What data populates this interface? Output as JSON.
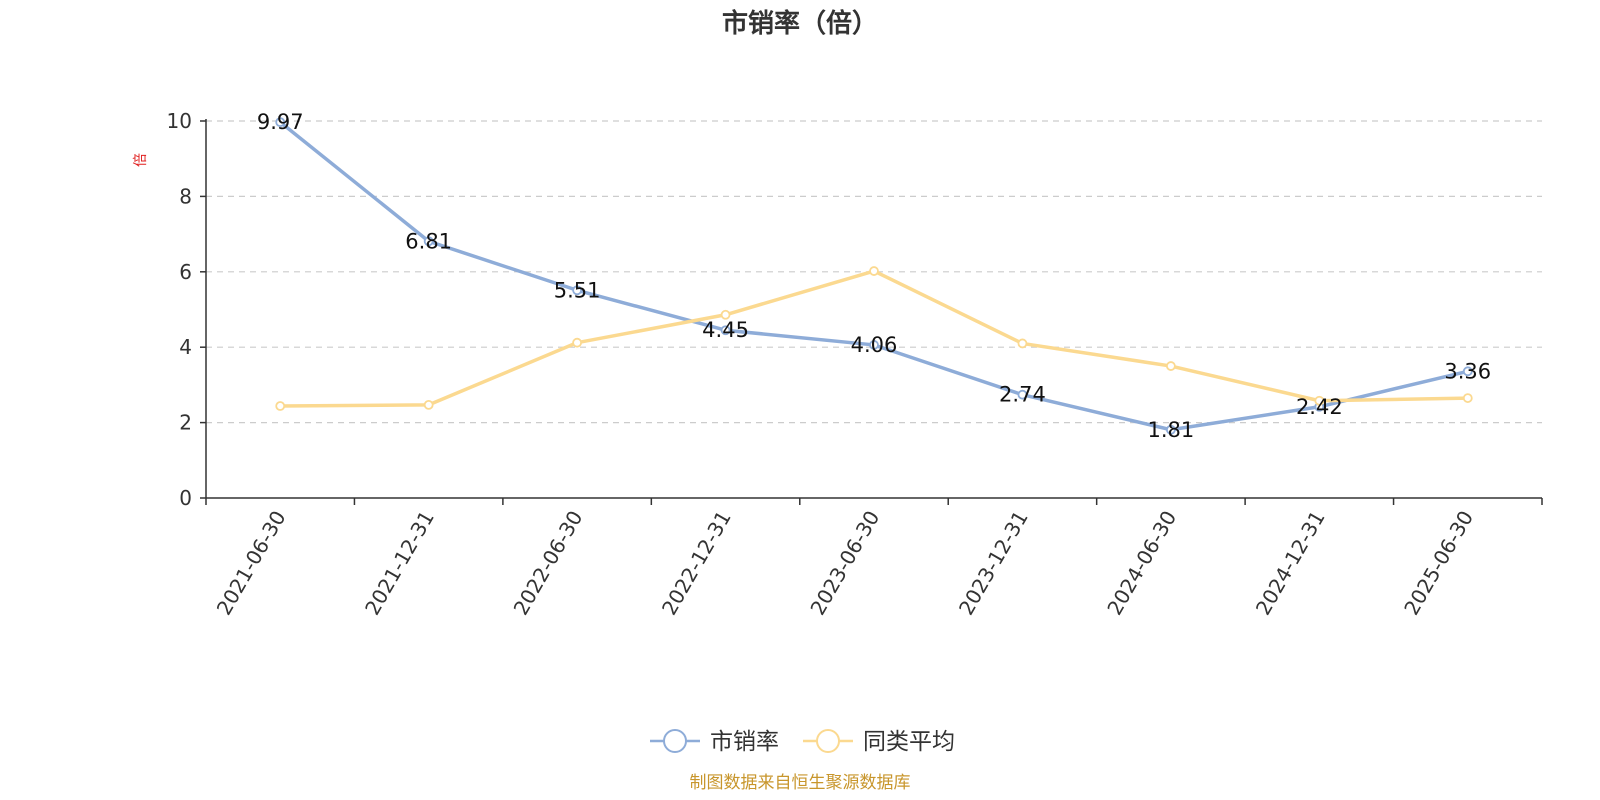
{
  "chart_data": {
    "type": "line",
    "title": "市销率（倍）",
    "ylabel": "倍",
    "categories": [
      "2021-06-30",
      "2021-12-31",
      "2022-06-30",
      "2022-12-31",
      "2023-06-30",
      "2023-12-31",
      "2024-06-30",
      "2024-12-31",
      "2025-06-30"
    ],
    "ylim": [
      0,
      10
    ],
    "yticks": [
      0,
      2,
      4,
      6,
      8,
      10
    ],
    "grid": true,
    "legend_position": "bottom-center",
    "series": [
      {
        "name": "市销率",
        "color": "#8eacd8",
        "values": [
          9.97,
          6.81,
          5.51,
          4.45,
          4.06,
          2.74,
          1.81,
          2.42,
          3.36
        ],
        "labels": [
          "9.97",
          "6.81",
          "5.51",
          "4.45",
          "4.06",
          "2.74",
          "1.81",
          "2.42",
          "3.36"
        ]
      },
      {
        "name": "同类平均",
        "color": "#fbd990",
        "values": [
          2.44,
          2.47,
          4.12,
          4.86,
          6.02,
          4.1,
          3.5,
          2.58,
          2.65
        ]
      }
    ],
    "source": "制图数据来自恒生聚源数据库"
  }
}
